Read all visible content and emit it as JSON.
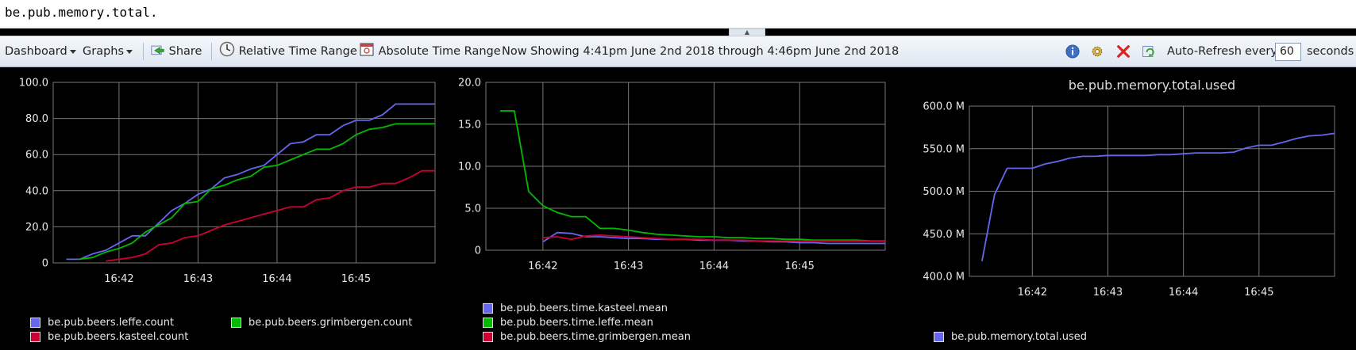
{
  "query": {
    "value": "be.pub.memory.total."
  },
  "toolbar": {
    "dashboard": "Dashboard",
    "graphs": "Graphs",
    "share": "Share",
    "relative_time": "Relative Time Range",
    "absolute_time": "Absolute Time Range",
    "now_showing": "Now Showing 4:41pm June 2nd 2018 through 4:46pm June 2nd 2018",
    "auto_refresh": "Auto-Refresh",
    "every": "every",
    "every_value": "60",
    "seconds": "seconds"
  },
  "icons": {
    "share": "share-icon",
    "relative": "clock-icon",
    "absolute": "calendar-icon",
    "info": "info-icon",
    "settings": "gear-icon",
    "remove": "close-icon",
    "refresh": "refresh-icon"
  },
  "colors": {
    "blue": "#6666ee",
    "green": "#00bb00",
    "red": "#cc0033",
    "grid": "#777777",
    "text": "#e8e8e8"
  },
  "chart_data": [
    {
      "type": "line",
      "title": "",
      "xlabel": "",
      "ylabel": "",
      "x_ticks": [
        "16:42",
        "16:43",
        "16:44",
        "16:45"
      ],
      "y_ticks": [
        "0",
        "20.0",
        "40.0",
        "60.0",
        "80.0",
        "100.0"
      ],
      "ylim": [
        0,
        100
      ],
      "x": [
        "16:41:20",
        "16:41:30",
        "16:41:40",
        "16:41:50",
        "16:42:00",
        "16:42:10",
        "16:42:20",
        "16:42:30",
        "16:42:40",
        "16:42:50",
        "16:43:00",
        "16:43:10",
        "16:43:20",
        "16:43:30",
        "16:43:40",
        "16:43:50",
        "16:44:00",
        "16:44:10",
        "16:44:20",
        "16:44:30",
        "16:44:40",
        "16:44:50",
        "16:45:00",
        "16:45:10",
        "16:45:20",
        "16:45:30",
        "16:45:40",
        "16:45:50",
        "16:46:00"
      ],
      "series": [
        {
          "name": "be.pub.beers.leffe.count",
          "color": "#6666ee",
          "values": [
            2,
            2,
            5,
            7,
            11,
            15,
            15,
            22,
            29,
            33,
            38,
            41,
            47,
            49,
            52,
            54,
            60,
            66,
            67,
            71,
            71,
            76,
            79,
            79,
            82,
            88,
            88,
            88,
            88
          ]
        },
        {
          "name": "be.pub.beers.grimbergen.count",
          "color": "#00bb00",
          "values": [
            null,
            2,
            3,
            6,
            8,
            11,
            17,
            21,
            25,
            33,
            34,
            41,
            43,
            46,
            48,
            53,
            54,
            57,
            60,
            63,
            63,
            66,
            71,
            74,
            75,
            77,
            77,
            77,
            77
          ]
        },
        {
          "name": "be.pub.beers.kasteel.count",
          "color": "#cc0033",
          "values": [
            null,
            null,
            null,
            1,
            2,
            3,
            5,
            10,
            11,
            14,
            15,
            18,
            21,
            23,
            25,
            27,
            29,
            31,
            31,
            35,
            36,
            40,
            42,
            42,
            44,
            44,
            47,
            51,
            51
          ]
        }
      ],
      "legend": "bottom"
    },
    {
      "type": "line",
      "title": "",
      "xlabel": "",
      "ylabel": "",
      "x_ticks": [
        "16:42",
        "16:43",
        "16:44",
        "16:45"
      ],
      "y_ticks": [
        "0",
        "5.0",
        "10.0",
        "15.0",
        "20.0"
      ],
      "ylim": [
        0,
        20
      ],
      "x": [
        "16:41:30",
        "16:41:40",
        "16:41:50",
        "16:42:00",
        "16:42:10",
        "16:42:20",
        "16:42:30",
        "16:42:40",
        "16:42:50",
        "16:43:00",
        "16:43:10",
        "16:43:20",
        "16:43:30",
        "16:43:40",
        "16:43:50",
        "16:44:00",
        "16:44:10",
        "16:44:20",
        "16:44:30",
        "16:44:40",
        "16:44:50",
        "16:45:00",
        "16:45:10",
        "16:45:20",
        "16:45:30",
        "16:45:40",
        "16:45:50",
        "16:46:00"
      ],
      "series": [
        {
          "name": "be.pub.beers.time.kasteel.mean",
          "color": "#6666ee",
          "values": [
            null,
            null,
            null,
            1.0,
            2.1,
            2.0,
            1.6,
            1.6,
            1.5,
            1.4,
            1.4,
            1.3,
            1.3,
            1.3,
            1.2,
            1.2,
            1.2,
            1.1,
            1.1,
            1.0,
            1.0,
            0.9,
            0.9,
            0.8,
            0.8,
            0.8,
            0.8,
            0.8
          ]
        },
        {
          "name": "be.pub.beers.time.leffe.mean",
          "color": "#00bb00",
          "values": [
            16.6,
            16.6,
            7.0,
            5.3,
            4.5,
            4.0,
            4.0,
            2.6,
            2.6,
            2.4,
            2.1,
            1.9,
            1.8,
            1.7,
            1.6,
            1.6,
            1.5,
            1.5,
            1.4,
            1.4,
            1.3,
            1.3,
            1.2,
            1.2,
            1.2,
            1.2,
            1.1,
            1.1
          ]
        },
        {
          "name": "be.pub.beers.time.grimbergen.mean",
          "color": "#cc0033",
          "values": [
            null,
            null,
            null,
            1.5,
            1.6,
            1.3,
            1.7,
            1.8,
            1.7,
            1.6,
            1.5,
            1.4,
            1.3,
            1.3,
            1.3,
            1.2,
            1.2,
            1.2,
            1.1,
            1.1,
            1.1,
            1.1,
            1.1,
            1.1,
            1.1,
            1.1,
            1.1,
            1.1
          ]
        }
      ],
      "legend": "bottom"
    },
    {
      "type": "line",
      "title": "be.pub.memory.total.used",
      "xlabel": "",
      "ylabel": "",
      "x_ticks": [
        "16:42",
        "16:43",
        "16:44",
        "16:45"
      ],
      "y_ticks": [
        "400.0 M",
        "450.0 M",
        "500.0 M",
        "550.0 M",
        "600.0 M"
      ],
      "ylim": [
        400,
        600
      ],
      "x": [
        "16:41:20",
        "16:41:30",
        "16:41:40",
        "16:41:50",
        "16:42:00",
        "16:42:10",
        "16:42:20",
        "16:42:30",
        "16:42:40",
        "16:42:50",
        "16:43:00",
        "16:43:10",
        "16:43:20",
        "16:43:30",
        "16:43:40",
        "16:43:50",
        "16:44:00",
        "16:44:10",
        "16:44:20",
        "16:44:30",
        "16:44:40",
        "16:44:50",
        "16:45:00",
        "16:45:10",
        "16:45:20",
        "16:45:30",
        "16:45:40",
        "16:45:50",
        "16:46:00"
      ],
      "series": [
        {
          "name": "be.pub.memory.total.used",
          "color": "#6666ee",
          "values": [
            418,
            496,
            527,
            527,
            527,
            532,
            535,
            539,
            541,
            541,
            542,
            542,
            542,
            542,
            543,
            543,
            544,
            545,
            545,
            545,
            546,
            551,
            554,
            554,
            558,
            562,
            565,
            566,
            568
          ]
        }
      ],
      "legend": "bottom"
    }
  ]
}
